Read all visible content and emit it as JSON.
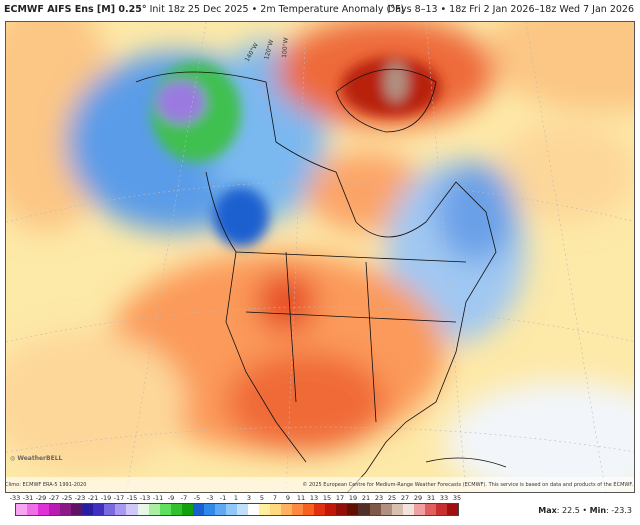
{
  "header": {
    "model": "ECMWF AIFS Ens [M] 0.25°",
    "init": "Init 18z 25 Dec 2025",
    "separator": "•",
    "field": "2m Temperature Anomaly (°F)",
    "period": "Days 8–13 • 18z Fri 2 Jan 2026–18z Wed 7 Jan 2026"
  },
  "footer": {
    "climo": "Climo: ECMWF ERA-5 1991-2020",
    "copyright": "© 2025 European Centre for Medium-Range Weather Forecasts (ECMWF). This service is based on data and products of the ECMWF.",
    "logo": "WeatherBELL",
    "max_label": "Max",
    "max": "22.5",
    "min_label": "Min",
    "min": "-23.3"
  },
  "colorbar": {
    "labels": [
      "-33",
      "-31",
      "-29",
      "-27",
      "-25",
      "-23",
      "-21",
      "-19",
      "-17",
      "-15",
      "-13",
      "-11",
      "-9",
      "-7",
      "-5",
      "-3",
      "-1",
      "1",
      "3",
      "5",
      "7",
      "9",
      "11",
      "13",
      "15",
      "17",
      "19",
      "21",
      "23",
      "25",
      "27",
      "29",
      "31",
      "33",
      "35"
    ],
    "colors": [
      "#f6a6f0",
      "#ee6ee8",
      "#e030d8",
      "#b81cb0",
      "#8a1a86",
      "#5e1460",
      "#2a1ea0",
      "#4030c0",
      "#7a6ae0",
      "#a89af0",
      "#d0c8f8",
      "#e8f8e8",
      "#a8f0a0",
      "#60e060",
      "#30c030",
      "#10a010",
      "#1a60d0",
      "#3088e8",
      "#60a8f0",
      "#90c8f8",
      "#c0e0fa",
      "#ffffff",
      "#fff0a0",
      "#ffd880",
      "#ffb060",
      "#ff8840",
      "#f86020",
      "#e03010",
      "#c01808",
      "#901008",
      "#601000",
      "#503028",
      "#805848",
      "#b09080",
      "#d8c0b0",
      "#f0e4dc",
      "#f0a0a0",
      "#e06060",
      "#c83030",
      "#a01010"
    ]
  },
  "map": {
    "labels": [
      "140°W",
      "120°W",
      "100°W"
    ]
  }
}
